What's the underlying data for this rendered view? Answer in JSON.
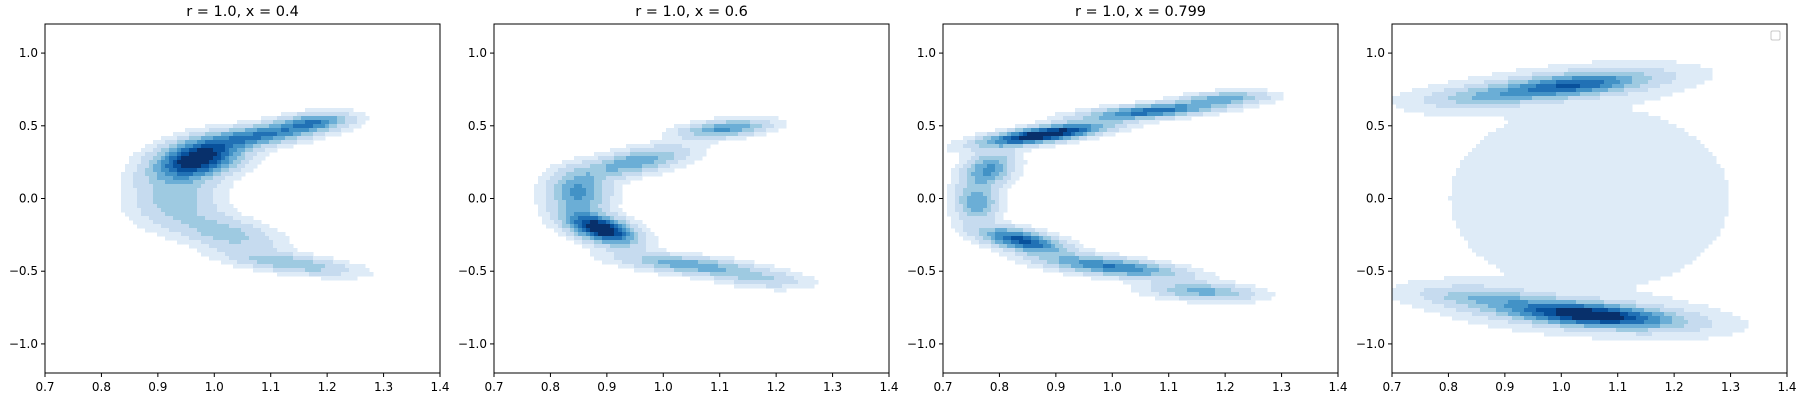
{
  "figure": {
    "background": "#ffffff",
    "colormap": "Blues",
    "colormap_stops": [
      "#f7fbff",
      "#deebf7",
      "#c6dbef",
      "#9ecae1",
      "#6baed6",
      "#4292c6",
      "#2171b5",
      "#08519c",
      "#08306b"
    ]
  },
  "chart_data": [
    {
      "type": "contour",
      "title": "r = 1.0, x = 0.4",
      "xlabel": "",
      "ylabel": "",
      "xlim": [
        0.7,
        1.4
      ],
      "ylim": [
        -1.2,
        1.2
      ],
      "xticks": [
        "0.7",
        "0.8",
        "0.9",
        "1.0",
        "1.1",
        "1.2",
        "1.3",
        "1.4"
      ],
      "yticks": [
        "-1.0",
        "-0.5",
        "0.0",
        "0.5",
        "1.0"
      ],
      "grid": false,
      "density_modes": [
        {
          "x": 0.97,
          "y": 0.27,
          "sx": 0.05,
          "sy": 0.09,
          "rho": 0.35,
          "w": 1.0
        },
        {
          "x": 1.09,
          "y": 0.44,
          "sx": 0.07,
          "sy": 0.06,
          "rho": 0.6,
          "w": 0.6
        },
        {
          "x": 1.18,
          "y": 0.53,
          "sx": 0.04,
          "sy": 0.04,
          "rho": 0.3,
          "w": 0.45
        },
        {
          "x": 0.93,
          "y": 0.0,
          "sx": 0.05,
          "sy": 0.12,
          "rho": 0.0,
          "w": 0.3
        },
        {
          "x": 1.02,
          "y": -0.24,
          "sx": 0.06,
          "sy": 0.09,
          "rho": -0.5,
          "w": 0.3
        },
        {
          "x": 1.14,
          "y": -0.45,
          "sx": 0.07,
          "sy": 0.05,
          "rho": -0.6,
          "w": 0.35
        }
      ]
    },
    {
      "type": "contour",
      "title": "r = 1.0, x = 0.6",
      "xlabel": "",
      "ylabel": "",
      "xlim": [
        0.7,
        1.4
      ],
      "ylim": [
        -1.2,
        1.2
      ],
      "xticks": [
        "0.7",
        "0.8",
        "0.9",
        "1.0",
        "1.1",
        "1.2",
        "1.3",
        "1.4"
      ],
      "yticks": [
        "-1.0",
        "-0.5",
        "0.0",
        "0.5",
        "1.0"
      ],
      "grid": false,
      "density_modes": [
        {
          "x": 0.89,
          "y": -0.21,
          "sx": 0.04,
          "sy": 0.07,
          "rho": -0.5,
          "w": 1.0
        },
        {
          "x": 1.05,
          "y": -0.46,
          "sx": 0.08,
          "sy": 0.05,
          "rho": -0.6,
          "w": 0.45
        },
        {
          "x": 0.85,
          "y": 0.04,
          "sx": 0.035,
          "sy": 0.1,
          "rho": 0.0,
          "w": 0.5
        },
        {
          "x": 0.95,
          "y": 0.25,
          "sx": 0.06,
          "sy": 0.07,
          "rho": 0.6,
          "w": 0.45
        },
        {
          "x": 1.11,
          "y": 0.48,
          "sx": 0.05,
          "sy": 0.04,
          "rho": 0.4,
          "w": 0.5
        },
        {
          "x": 1.18,
          "y": -0.56,
          "sx": 0.05,
          "sy": 0.04,
          "rho": -0.3,
          "w": 0.2
        }
      ]
    },
    {
      "type": "contour",
      "title": "r = 1.0, x = 0.799",
      "xlabel": "",
      "ylabel": "",
      "xlim": [
        0.7,
        1.4
      ],
      "ylim": [
        -1.2,
        1.2
      ],
      "xticks": [
        "0.7",
        "0.8",
        "0.9",
        "1.0",
        "1.1",
        "1.2",
        "1.3",
        "1.4"
      ],
      "yticks": [
        "-1.0",
        "-0.5",
        "0.0",
        "0.5",
        "1.0"
      ],
      "grid": false,
      "density_modes": [
        {
          "x": 0.88,
          "y": 0.44,
          "sx": 0.07,
          "sy": 0.05,
          "rho": 0.7,
          "w": 1.0
        },
        {
          "x": 1.07,
          "y": 0.6,
          "sx": 0.08,
          "sy": 0.04,
          "rho": 0.6,
          "w": 0.65
        },
        {
          "x": 1.2,
          "y": 0.69,
          "sx": 0.05,
          "sy": 0.03,
          "rho": 0.3,
          "w": 0.4
        },
        {
          "x": 0.78,
          "y": 0.2,
          "sx": 0.03,
          "sy": 0.08,
          "rho": 0.3,
          "w": 0.5
        },
        {
          "x": 0.76,
          "y": -0.03,
          "sx": 0.025,
          "sy": 0.08,
          "rho": 0.0,
          "w": 0.45
        },
        {
          "x": 0.84,
          "y": -0.29,
          "sx": 0.05,
          "sy": 0.06,
          "rho": -0.6,
          "w": 0.75
        },
        {
          "x": 1.0,
          "y": -0.47,
          "sx": 0.08,
          "sy": 0.05,
          "rho": -0.6,
          "w": 0.6
        },
        {
          "x": 1.16,
          "y": -0.64,
          "sx": 0.06,
          "sy": 0.04,
          "rho": -0.3,
          "w": 0.4
        }
      ]
    },
    {
      "type": "contour",
      "title": "",
      "xlabel": "",
      "ylabel": "",
      "xlim": [
        0.7,
        1.4
      ],
      "ylim": [
        -1.2,
        1.2
      ],
      "xticks": [
        "0.7",
        "0.8",
        "0.9",
        "1.0",
        "1.1",
        "1.2",
        "1.3",
        "1.4"
      ],
      "yticks": [
        "-1.0",
        "-0.5",
        "0.0",
        "0.5",
        "1.0"
      ],
      "grid": false,
      "legend": "top-right (empty)",
      "density_modes": [
        {
          "x": 1.02,
          "y": 0.78,
          "sx": 0.09,
          "sy": 0.06,
          "rho": 0.5,
          "w": 0.7
        },
        {
          "x": 1.05,
          "y": -0.8,
          "sx": 0.1,
          "sy": 0.06,
          "rho": -0.45,
          "w": 1.0
        },
        {
          "x": 0.86,
          "y": 0.7,
          "sx": 0.07,
          "sy": 0.05,
          "rho": 0.3,
          "w": 0.25
        },
        {
          "x": 0.86,
          "y": -0.68,
          "sx": 0.07,
          "sy": 0.05,
          "rho": -0.3,
          "w": 0.3
        },
        {
          "x": 1.05,
          "y": 0.0,
          "sx": 0.35,
          "sy": 0.9,
          "rho": 0.0,
          "w": 0.06
        }
      ]
    }
  ]
}
